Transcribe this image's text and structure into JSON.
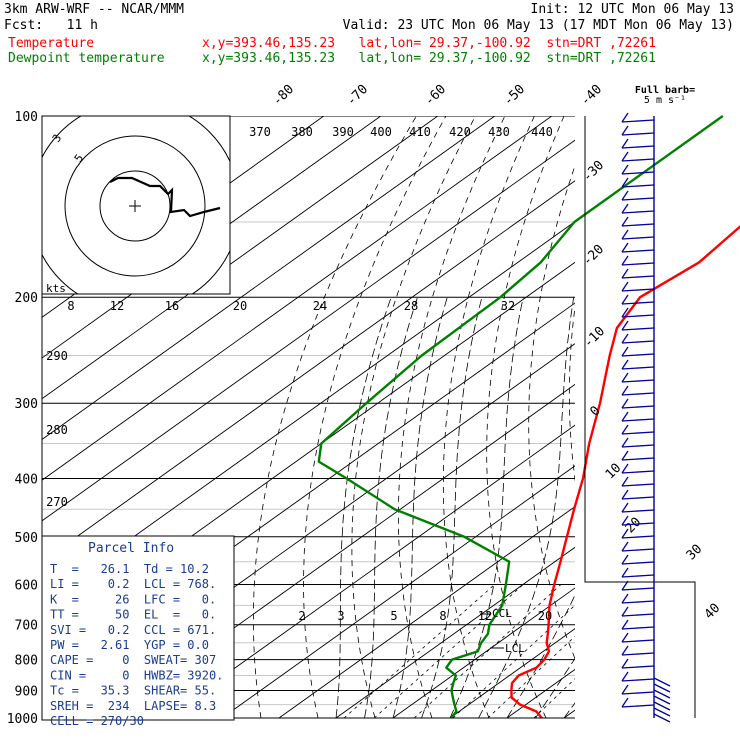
{
  "header": {
    "model": "3km ARW-WRF -- NCAR/MMM",
    "init": "Init: 12 UTC Mon 06 May 13",
    "fcst": "Fcst:   11 h",
    "valid": "Valid: 23 UTC Mon 06 May 13 (17 MDT Mon 06 May 13)",
    "temp_name": "Temperature",
    "temp_loc": "x,y=393.46,135.23   lat,lon= 29.37,-100.92  stn=DRT ,72261",
    "dew_name": "Dewpoint temperature",
    "dew_loc": "x,y=393.46,135.23   lat,lon= 29.37,-100.92  stn=DRT ,72261"
  },
  "colors": {
    "temperature": "#ff0000",
    "dewpoint": "#008000",
    "barbs": "#0000a0",
    "text_blue": "#1a3d8f"
  },
  "chart_data": {
    "type": "line",
    "skew_t": true,
    "pressure_levels": [
      100,
      200,
      300,
      400,
      500,
      600,
      700,
      800,
      900,
      1000
    ],
    "isotherm_labels": [
      "-80",
      "-70",
      "-60",
      "-50",
      "-40",
      "-30",
      "-20",
      "-10",
      "0",
      "10",
      "20",
      "30",
      "40"
    ],
    "theta_labels": [
      "370",
      "380",
      "390",
      "400",
      "410",
      "420",
      "430",
      "440",
      "290",
      "280",
      "270"
    ],
    "mixing_ratio_labels": [
      "2",
      "3",
      "5",
      "8",
      "12",
      "20"
    ],
    "lcl_labels": [
      "CCL",
      "LCL"
    ],
    "series": [
      {
        "name": "Temperature",
        "unit": "C",
        "points": [
          [
            1000,
            26.1
          ],
          [
            975,
            23.5
          ],
          [
            950,
            19
          ],
          [
            925,
            15.8
          ],
          [
            900,
            14
          ],
          [
            875,
            12.3
          ],
          [
            850,
            11.6
          ],
          [
            825,
            12.8
          ],
          [
            800,
            12.2
          ],
          [
            775,
            11
          ],
          [
            750,
            8.5
          ],
          [
            725,
            6.5
          ],
          [
            700,
            4.4
          ],
          [
            650,
            -0.2
          ],
          [
            600,
            -4.5
          ],
          [
            550,
            -9
          ],
          [
            500,
            -14
          ],
          [
            450,
            -19.5
          ],
          [
            400,
            -25.5
          ],
          [
            350,
            -33
          ],
          [
            300,
            -41
          ],
          [
            250,
            -51
          ],
          [
            225,
            -56.5
          ],
          [
            200,
            -60
          ],
          [
            175,
            -58.2
          ],
          [
            150,
            -60
          ],
          [
            125,
            -62.5
          ],
          [
            100,
            -66
          ]
        ]
      },
      {
        "name": "Dewpoint temperature",
        "unit": "C",
        "points": [
          [
            1000,
            10.2
          ],
          [
            975,
            9.5
          ],
          [
            950,
            7.5
          ],
          [
            925,
            5.5
          ],
          [
            900,
            3.5
          ],
          [
            875,
            2
          ],
          [
            850,
            0.6
          ],
          [
            825,
            -3
          ],
          [
            800,
            -4
          ],
          [
            775,
            -1.5
          ],
          [
            750,
            -3
          ],
          [
            725,
            -4
          ],
          [
            700,
            -6
          ],
          [
            650,
            -8.5
          ],
          [
            600,
            -13
          ],
          [
            550,
            -18
          ],
          [
            500,
            -32
          ],
          [
            450,
            -51
          ],
          [
            400,
            -67
          ],
          [
            375,
            -76
          ],
          [
            350,
            -80
          ],
          [
            300,
            -82
          ],
          [
            250,
            -84
          ],
          [
            200,
            -84.5
          ],
          [
            175,
            -86
          ],
          [
            150,
            -90
          ],
          [
            125,
            -90
          ],
          [
            100,
            -90
          ]
        ]
      }
    ]
  },
  "hodograph": {
    "kts_label": "kts",
    "ring_labels": [
      "5",
      "3"
    ],
    "speed_labels": [
      "8",
      "12",
      "16",
      "20",
      "24",
      "28",
      "32"
    ]
  },
  "barb_title": "Full barb=\n5 m s⁻¹",
  "parcel": {
    "title": "Parcel Info",
    "rows": [
      "T  =   26.1  Td = 10.2",
      "LI =    0.2  LCL = 768.",
      "K  =     26  LFC =   0.",
      "TT =     50  EL  =   0.",
      "SVI =   0.2  CCL = 671.",
      "PW =   2.61  YGP = 0.0",
      "CAPE =    0  SWEAT= 307",
      "CIN =     0  HWBZ= 3920.",
      "Tc =   35.3  SHEAR= 55.",
      "SREH =  234  LAPSE= 8.3",
      "CELL = 270/30"
    ]
  }
}
